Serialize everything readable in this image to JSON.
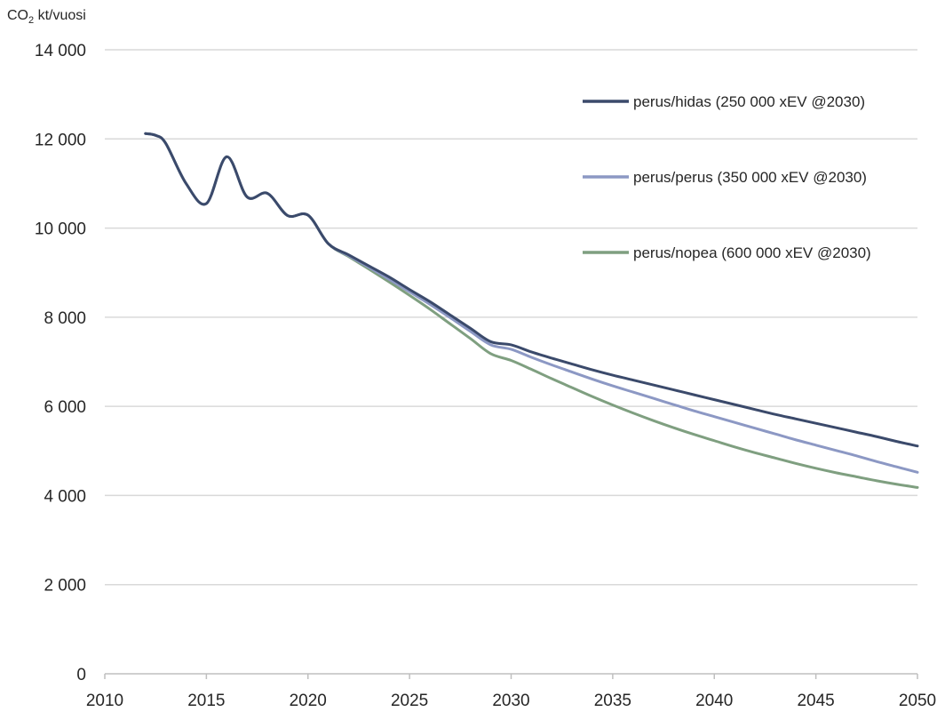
{
  "chart_data": {
    "type": "line",
    "ylabel_main": "CO",
    "ylabel_sub": "2",
    "ylabel_rest": " kt/vuosi",
    "xlim": [
      2010,
      2050
    ],
    "ylim": [
      0,
      14000
    ],
    "x_ticks": [
      2010,
      2015,
      2020,
      2025,
      2030,
      2035,
      2040,
      2045,
      2050
    ],
    "x_tick_labels": [
      "2010",
      "2015",
      "2020",
      "2025",
      "2030",
      "2035",
      "2040",
      "2045",
      "2050"
    ],
    "y_ticks": [
      0,
      2000,
      4000,
      6000,
      8000,
      10000,
      12000,
      14000
    ],
    "y_tick_labels": [
      "0",
      "2 000",
      "4 000",
      "6 000",
      "8 000",
      "10 000",
      "12 000",
      "14 000"
    ],
    "grid": true,
    "legend_position": "top-right",
    "series": [
      {
        "name": "perus/hidas (250 000 xEV @2030)",
        "color": "#3b4a6b",
        "x": [
          2012,
          2012.5,
          2013,
          2014,
          2015,
          2016,
          2017,
          2018,
          2019,
          2020,
          2021,
          2022,
          2023,
          2024,
          2025,
          2026,
          2027,
          2028,
          2029,
          2030,
          2031,
          2032,
          2033,
          2034,
          2035,
          2036,
          2037,
          2038,
          2039,
          2040,
          2041,
          2042,
          2043,
          2044,
          2045,
          2046,
          2047,
          2048,
          2049,
          2050
        ],
        "y": [
          12120,
          12080,
          11900,
          11000,
          10550,
          11600,
          10700,
          10780,
          10280,
          10290,
          9650,
          9400,
          9150,
          8900,
          8620,
          8350,
          8050,
          7750,
          7450,
          7380,
          7220,
          7080,
          6950,
          6820,
          6700,
          6590,
          6480,
          6370,
          6260,
          6150,
          6040,
          5930,
          5820,
          5720,
          5620,
          5520,
          5420,
          5320,
          5210,
          5110
        ]
      },
      {
        "name": "perus/perus (350 000 xEV @2030)",
        "color": "#8c98c4",
        "x": [
          2012,
          2012.5,
          2013,
          2014,
          2015,
          2016,
          2017,
          2018,
          2019,
          2020,
          2021,
          2022,
          2023,
          2024,
          2025,
          2026,
          2027,
          2028,
          2029,
          2030,
          2031,
          2032,
          2033,
          2034,
          2035,
          2036,
          2037,
          2038,
          2039,
          2040,
          2041,
          2042,
          2043,
          2044,
          2045,
          2046,
          2047,
          2048,
          2049,
          2050
        ],
        "y": [
          12120,
          12080,
          11900,
          11000,
          10550,
          11600,
          10700,
          10780,
          10280,
          10290,
          9650,
          9380,
          9120,
          8850,
          8570,
          8290,
          7990,
          7680,
          7380,
          7280,
          7100,
          6930,
          6770,
          6610,
          6460,
          6320,
          6180,
          6040,
          5900,
          5770,
          5640,
          5510,
          5380,
          5250,
          5130,
          5010,
          4890,
          4760,
          4640,
          4520
        ]
      },
      {
        "name": "perus/nopea (600 000 xEV @2030)",
        "color": "#7f9f80",
        "x": [
          2012,
          2012.5,
          2013,
          2014,
          2015,
          2016,
          2017,
          2018,
          2019,
          2020,
          2021,
          2022,
          2023,
          2024,
          2025,
          2026,
          2027,
          2028,
          2029,
          2030,
          2031,
          2032,
          2033,
          2034,
          2035,
          2036,
          2037,
          2038,
          2039,
          2040,
          2041,
          2042,
          2043,
          2044,
          2045,
          2046,
          2047,
          2048,
          2049,
          2050
        ],
        "y": [
          12120,
          12080,
          11900,
          11000,
          10550,
          11600,
          10700,
          10780,
          10280,
          10290,
          9650,
          9360,
          9080,
          8790,
          8490,
          8180,
          7850,
          7520,
          7180,
          7030,
          6830,
          6620,
          6420,
          6220,
          6030,
          5850,
          5680,
          5520,
          5370,
          5230,
          5090,
          4960,
          4840,
          4720,
          4610,
          4510,
          4420,
          4330,
          4250,
          4180
        ]
      }
    ]
  }
}
